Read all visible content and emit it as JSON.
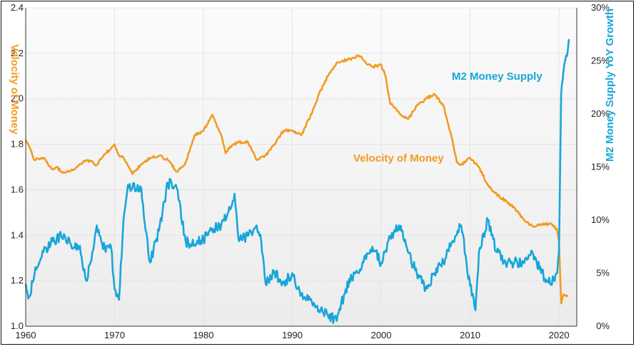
{
  "chart_data": {
    "type": "line",
    "title": "",
    "xlabel": "",
    "xlim": [
      1960,
      2022
    ],
    "x_ticks": [
      "1960",
      "1970",
      "1980",
      "1990",
      "2000",
      "2010",
      "2020"
    ],
    "y_left": {
      "label": "Velocity of Money",
      "ylim": [
        1.0,
        2.4
      ],
      "ticks": [
        "1.0",
        "1.2",
        "1.4",
        "1.6",
        "1.8",
        "2.0",
        "2.2",
        "2.4"
      ]
    },
    "y_right": {
      "label": "M2 Money Supply YoY Growth",
      "ylim": [
        0,
        30
      ],
      "ticks": [
        "0%",
        "5%",
        "10%",
        "15%",
        "20%",
        "25%",
        "30%"
      ]
    },
    "grid": true,
    "annotations": {
      "velocity": "Velocity of Money",
      "m2": "M2 Money Supply"
    },
    "colors": {
      "velocity": "#f29b21",
      "m2": "#17a6d9",
      "grid": "#e4e4e4"
    },
    "series": [
      {
        "name": "Velocity of Money",
        "axis": "left",
        "x": [
          1960,
          1960.5,
          1961,
          1962,
          1963,
          1963.5,
          1964,
          1965,
          1966,
          1967,
          1968,
          1969,
          1970,
          1970.5,
          1971,
          1972,
          1973,
          1974,
          1975,
          1976,
          1977,
          1978,
          1979,
          1980,
          1981,
          1981.5,
          1982,
          1982.5,
          1983,
          1984,
          1985,
          1986,
          1987,
          1988,
          1989,
          1990,
          1991,
          1992,
          1993,
          1994,
          1995,
          1996,
          1997,
          1997.5,
          1998,
          1999,
          2000,
          2000.5,
          2001,
          2002,
          2003,
          2004,
          2005,
          2006,
          2007,
          2008,
          2008.5,
          2009,
          2010,
          2011,
          2012,
          2013,
          2014,
          2015,
          2016,
          2017,
          2018,
          2019,
          2019.75,
          2020,
          2020.25,
          2020.5,
          2021
        ],
        "y": [
          1.82,
          1.78,
          1.73,
          1.74,
          1.69,
          1.7,
          1.68,
          1.68,
          1.71,
          1.73,
          1.71,
          1.76,
          1.8,
          1.75,
          1.74,
          1.67,
          1.71,
          1.74,
          1.75,
          1.73,
          1.68,
          1.72,
          1.84,
          1.86,
          1.93,
          1.88,
          1.84,
          1.76,
          1.79,
          1.81,
          1.81,
          1.73,
          1.75,
          1.8,
          1.86,
          1.86,
          1.84,
          1.92,
          2.02,
          2.1,
          2.16,
          2.17,
          2.18,
          2.19,
          2.17,
          2.14,
          2.15,
          2.1,
          1.98,
          1.94,
          1.91,
          1.97,
          2.0,
          2.02,
          1.97,
          1.82,
          1.72,
          1.71,
          1.74,
          1.7,
          1.62,
          1.58,
          1.55,
          1.52,
          1.47,
          1.44,
          1.45,
          1.45,
          1.43,
          1.37,
          1.1,
          1.14,
          1.13
        ]
      },
      {
        "name": "M2 Money Supply",
        "axis": "right",
        "x": [
          1960,
          1960.4,
          1961,
          1962,
          1963,
          1964,
          1965,
          1966,
          1966.8,
          1967.5,
          1968,
          1969,
          1969.6,
          1970,
          1970.5,
          1971,
          1971.5,
          1972,
          1973,
          1973.5,
          1974,
          1975,
          1976,
          1977,
          1978,
          1979,
          1980,
          1981,
          1982,
          1983,
          1983.5,
          1984,
          1985,
          1986,
          1986.5,
          1987,
          1988,
          1989,
          1990,
          1991,
          1992,
          1993,
          1994,
          1995,
          1996,
          1997,
          1998,
          1999,
          2000,
          2001,
          2002,
          2003,
          2004,
          2005,
          2006,
          2007,
          2008,
          2009,
          2010,
          2010.6,
          2011,
          2012,
          2013,
          2014,
          2015,
          2016,
          2017,
          2018,
          2019,
          2019.8,
          2020,
          2020.25,
          2020.5,
          2021,
          2021.2
        ],
        "y": [
          4,
          2.8,
          5,
          7,
          8,
          8.5,
          7.8,
          7.5,
          4.3,
          7,
          9.5,
          7,
          7.5,
          3.5,
          2.5,
          10,
          13.3,
          13,
          13,
          9,
          6,
          9,
          13.5,
          13,
          8,
          7.7,
          8.2,
          9.2,
          9.5,
          11,
          12.5,
          8,
          8.5,
          9.5,
          8,
          4,
          5,
          4,
          5,
          3,
          2.5,
          1.5,
          1,
          0.5,
          3.5,
          5,
          6,
          7.5,
          6,
          8.5,
          9.5,
          7,
          5,
          3.5,
          5,
          6,
          8,
          9.5,
          3.8,
          1.5,
          7,
          10,
          7,
          6,
          6,
          6,
          7,
          5,
          4,
          5,
          7,
          22,
          24,
          26,
          27
        ]
      }
    ]
  }
}
